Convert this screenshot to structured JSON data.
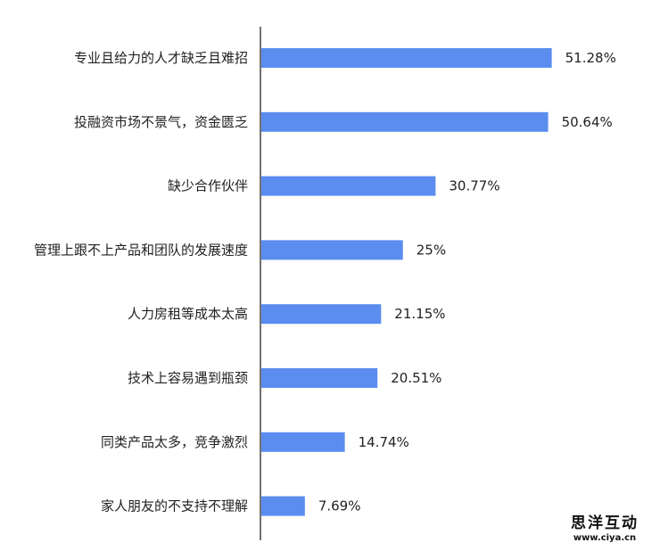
{
  "chart_data": {
    "type": "bar",
    "orientation": "horizontal",
    "title": "",
    "xlabel": "",
    "ylabel": "",
    "xlim": [
      0,
      55
    ],
    "grid": false,
    "legend": "none",
    "bar_color": "#5b8def",
    "categories": [
      "专业且给力的人才缺乏且难招",
      "投融资市场不景气，资金匮乏",
      "缺少合作伙伴",
      "管理上跟不上产品和团队的发展速度",
      "人力房租等成本太高",
      "技术上容易遇到瓶颈",
      "同类产品太多，竞争激烈",
      "家人朋友的不支持不理解"
    ],
    "values": [
      51.28,
      50.64,
      30.77,
      25,
      21.15,
      20.51,
      14.74,
      7.69
    ],
    "value_labels": [
      "51.28%",
      "50.64%",
      "30.77%",
      "25%",
      "21.15%",
      "20.51%",
      "14.74%",
      "7.69%"
    ]
  },
  "watermark": {
    "name": "思洋互动",
    "url": "www.ciya.cn"
  }
}
